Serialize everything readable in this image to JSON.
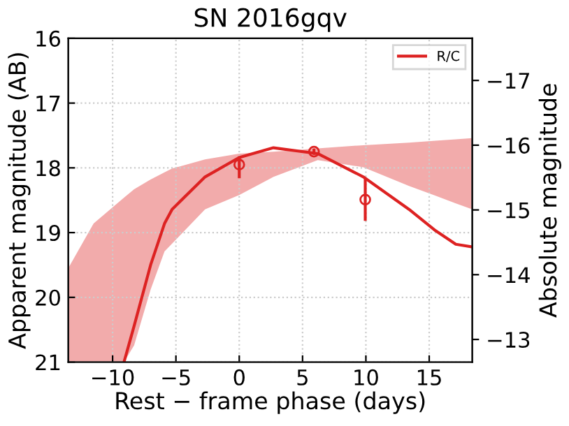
{
  "chart_data": {
    "type": "line",
    "title": "SN 2016gqv",
    "xlabel": "Rest − frame phase (days)",
    "ylabel": "Apparent magnitude (AB)",
    "y2label": "Absolute magnitude",
    "xlim": [
      -13.5,
      18.4
    ],
    "xticks": [
      -10,
      -5,
      0,
      5,
      10,
      15
    ],
    "ylim": [
      21,
      16
    ],
    "yticks": [
      16,
      17,
      18,
      19,
      20,
      21
    ],
    "y2lim": [
      -12.65,
      -17.65
    ],
    "y2ticks": [
      -13,
      -14,
      -15,
      -16,
      -17
    ],
    "grid": true,
    "legend": "top right",
    "series": [
      {
        "name": "R/C",
        "color": "#dd2222",
        "x": [
          -13.5,
          -11.5,
          -9.1,
          -8.3,
          -7.0,
          -5.9,
          -5.3,
          -2.7,
          0,
          2.7,
          6.2,
          9.8,
          13.4,
          15.5,
          17.1,
          18.4
        ],
        "values": [
          null,
          null,
          21,
          20.44,
          19.5,
          18.86,
          18.64,
          18.14,
          17.84,
          17.69,
          17.78,
          18.14,
          18.64,
          18.97,
          19.18,
          19.22
        ],
        "lower": [
          19.55,
          18.86,
          18.46,
          18.33,
          18.18,
          18.07,
          18.01,
          17.87,
          17.78,
          17.75,
          17.7,
          17.65,
          17.61,
          17.58,
          17.56,
          17.54
        ],
        "upper": [
          21,
          21,
          21,
          20.74,
          19.88,
          19.29,
          19.17,
          18.64,
          18.42,
          18.14,
          17.88,
          17.99,
          18.28,
          18.43,
          18.55,
          18.64
        ]
      },
      {
        "type": "scatter",
        "color": "#dd2222",
        "marker": "circle",
        "x": [
          0,
          5.9,
          9.95
        ],
        "values": [
          17.95,
          17.75,
          18.49
        ],
        "errors": [
          [
            17.82,
            18.16
          ],
          [
            17.7,
            17.8
          ],
          [
            18.17,
            18.82
          ]
        ]
      }
    ]
  }
}
